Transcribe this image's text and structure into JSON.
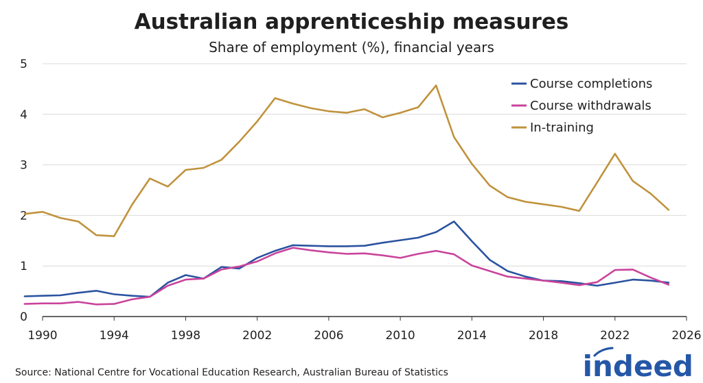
{
  "chart_data": {
    "type": "line",
    "title": "Australian apprenticeship measures",
    "subtitle": "Share of employment (%), financial years",
    "xlabel": "",
    "ylabel": "",
    "xlim": [
      1990,
      2026
    ],
    "ylim": [
      0,
      5
    ],
    "xticks": [
      1990,
      1994,
      1998,
      2002,
      2006,
      2010,
      2014,
      2018,
      2022,
      2026
    ],
    "yticks": [
      0,
      1,
      2,
      3,
      4,
      5
    ],
    "grid": "horizontal",
    "legend_position": "top-right",
    "x": [
      1989,
      1990,
      1991,
      1992,
      1993,
      1994,
      1995,
      1996,
      1997,
      1998,
      1999,
      2000,
      2001,
      2002,
      2003,
      2004,
      2005,
      2006,
      2007,
      2008,
      2009,
      2010,
      2011,
      2012,
      2013,
      2014,
      2015,
      2016,
      2017,
      2018,
      2019,
      2020,
      2021,
      2022,
      2023,
      2024,
      2025
    ],
    "series": [
      {
        "name": "Course completions",
        "color": "#2a52a0",
        "values": [
          0.4,
          0.41,
          0.42,
          0.47,
          0.51,
          0.44,
          0.41,
          0.39,
          0.67,
          0.82,
          0.75,
          0.98,
          0.95,
          1.16,
          1.3,
          1.41,
          1.4,
          1.39,
          1.39,
          1.4,
          1.46,
          1.51,
          1.56,
          1.67,
          1.88,
          1.49,
          1.12,
          0.9,
          0.79,
          0.71,
          0.7,
          0.66,
          0.61,
          0.67,
          0.73,
          0.71,
          0.67
        ]
      },
      {
        "name": "Course withdrawals",
        "color": "#c9439b",
        "values": [
          0.25,
          0.26,
          0.26,
          0.29,
          0.24,
          0.25,
          0.34,
          0.39,
          0.61,
          0.73,
          0.75,
          0.93,
          0.99,
          1.09,
          1.25,
          1.36,
          1.31,
          1.27,
          1.24,
          1.25,
          1.21,
          1.16,
          1.24,
          1.3,
          1.23,
          1.01,
          0.9,
          0.79,
          0.75,
          0.71,
          0.67,
          0.62,
          0.68,
          0.92,
          0.93,
          0.77,
          0.63
        ]
      },
      {
        "name": "In-training",
        "color": "#c0923c",
        "values": [
          2.03,
          2.07,
          1.95,
          1.88,
          1.61,
          1.59,
          2.21,
          2.73,
          2.57,
          2.9,
          2.94,
          3.1,
          3.46,
          3.86,
          4.32,
          4.21,
          4.12,
          4.06,
          4.03,
          4.1,
          3.94,
          4.03,
          4.14,
          4.57,
          3.55,
          3.02,
          2.59,
          2.36,
          2.27,
          2.22,
          2.17,
          2.09,
          2.65,
          3.22,
          2.68,
          2.43,
          2.11
        ]
      }
    ]
  },
  "source_text": "Source: National Centre for Vocational Education Research, Australian Bureau of Statistics",
  "logo": {
    "text": "indeed",
    "color": "#2557a7",
    "icon": "indeed-logo-mark"
  }
}
